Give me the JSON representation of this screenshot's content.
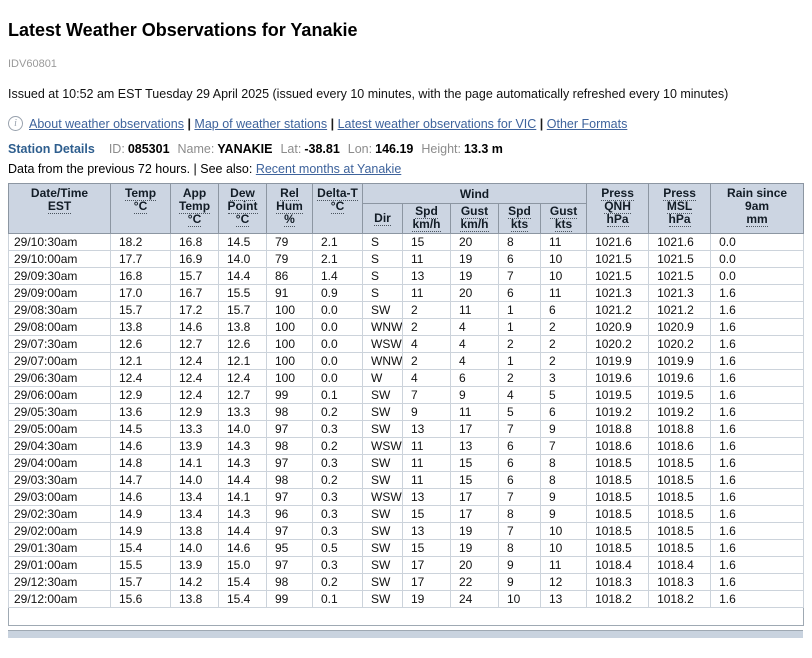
{
  "header": {
    "title": "Latest Weather Observations for Yanakie",
    "product_id": "IDV60801",
    "issued": "Issued at 10:52 am EST Tuesday 29 April 2025 (issued every 10 minutes, with the page automatically refreshed every 10 minutes)"
  },
  "nav": {
    "separator": "|",
    "links": [
      "About weather observations",
      "Map of weather stations",
      "Latest weather observations for VIC",
      "Other Formats"
    ]
  },
  "station": {
    "heading": "Station Details",
    "fields": [
      {
        "label": "ID:",
        "value": "085301"
      },
      {
        "label": "Name:",
        "value": "YANAKIE"
      },
      {
        "label": "Lat:",
        "value": "-38.81"
      },
      {
        "label": "Lon:",
        "value": "146.19"
      },
      {
        "label": "Height:",
        "value": "13.3 m"
      }
    ],
    "data_period": "Data from the previous 72 hours. | See also: ",
    "see_also_link": "Recent months at Yanakie"
  },
  "colors": {
    "link_blue": "#3e639c",
    "station_heading_blue": "#2e5e8e",
    "table_header_bg": "#ccd5e2",
    "table_border": "#ccd3db",
    "label_gray": "#8c8c8c"
  },
  "table": {
    "group_header": "Wind",
    "columns": [
      {
        "name": "date-time",
        "lines": [
          {
            "t": "Date/Time",
            "abbr": false
          },
          {
            "t": "EST",
            "abbr": true
          }
        ]
      },
      {
        "name": "temp",
        "lines": [
          {
            "t": "Temp",
            "abbr": true
          },
          {
            "t": "°C",
            "abbr": true
          }
        ]
      },
      {
        "name": "app-temp",
        "lines": [
          {
            "t": "App",
            "abbr": false
          },
          {
            "t": "Temp",
            "abbr": true
          },
          {
            "t": "°C",
            "abbr": true
          }
        ]
      },
      {
        "name": "dew-point",
        "lines": [
          {
            "t": "Dew",
            "abbr": true
          },
          {
            "t": "Point",
            "abbr": true
          },
          {
            "t": "°C",
            "abbr": true
          }
        ]
      },
      {
        "name": "rel-hum",
        "lines": [
          {
            "t": "Rel",
            "abbr": true
          },
          {
            "t": "Hum",
            "abbr": true
          },
          {
            "t": "%",
            "abbr": true
          }
        ]
      },
      {
        "name": "delta-t",
        "lines": [
          {
            "t": "Delta-T",
            "abbr": true
          },
          {
            "t": "°C",
            "abbr": true
          }
        ]
      },
      {
        "name": "wind-dir",
        "wind": true,
        "lines": [
          {
            "t": "Dir",
            "abbr": true
          }
        ]
      },
      {
        "name": "wind-spd-kmh",
        "wind": true,
        "lines": [
          {
            "t": "Spd",
            "abbr": true
          },
          {
            "t": "km/h",
            "abbr": true
          }
        ]
      },
      {
        "name": "wind-gust-kmh",
        "wind": true,
        "lines": [
          {
            "t": "Gust",
            "abbr": true
          },
          {
            "t": "km/h",
            "abbr": true
          }
        ]
      },
      {
        "name": "wind-spd-kts",
        "wind": true,
        "lines": [
          {
            "t": "Spd",
            "abbr": true
          },
          {
            "t": "kts",
            "abbr": true
          }
        ]
      },
      {
        "name": "wind-gust-kts",
        "wind": true,
        "lines": [
          {
            "t": "Gust",
            "abbr": true
          },
          {
            "t": "kts",
            "abbr": true
          }
        ]
      },
      {
        "name": "press-qnh",
        "lines": [
          {
            "t": "Press",
            "abbr": true
          },
          {
            "t": "QNH",
            "abbr": true
          },
          {
            "t": "hPa",
            "abbr": true
          }
        ]
      },
      {
        "name": "press-msl",
        "lines": [
          {
            "t": "Press",
            "abbr": true
          },
          {
            "t": "MSL",
            "abbr": true
          },
          {
            "t": "hPa",
            "abbr": true
          }
        ]
      },
      {
        "name": "rain-since-9am",
        "lines": [
          {
            "t": "Rain since",
            "abbr": false
          },
          {
            "t": "9am",
            "abbr": false
          },
          {
            "t": "mm",
            "abbr": true
          }
        ]
      }
    ],
    "rows": [
      [
        "29/10:30am",
        "18.2",
        "16.8",
        "14.5",
        "79",
        "2.1",
        "S",
        "15",
        "20",
        "8",
        "11",
        "1021.6",
        "1021.6",
        "0.0"
      ],
      [
        "29/10:00am",
        "17.7",
        "16.9",
        "14.0",
        "79",
        "2.1",
        "S",
        "11",
        "19",
        "6",
        "10",
        "1021.5",
        "1021.5",
        "0.0"
      ],
      [
        "29/09:30am",
        "16.8",
        "15.7",
        "14.4",
        "86",
        "1.4",
        "S",
        "13",
        "19",
        "7",
        "10",
        "1021.5",
        "1021.5",
        "0.0"
      ],
      [
        "29/09:00am",
        "17.0",
        "16.7",
        "15.5",
        "91",
        "0.9",
        "S",
        "11",
        "20",
        "6",
        "11",
        "1021.3",
        "1021.3",
        "1.6"
      ],
      [
        "29/08:30am",
        "15.7",
        "17.2",
        "15.7",
        "100",
        "0.0",
        "SW",
        "2",
        "11",
        "1",
        "6",
        "1021.2",
        "1021.2",
        "1.6"
      ],
      [
        "29/08:00am",
        "13.8",
        "14.6",
        "13.8",
        "100",
        "0.0",
        "WNW",
        "2",
        "4",
        "1",
        "2",
        "1020.9",
        "1020.9",
        "1.6"
      ],
      [
        "29/07:30am",
        "12.6",
        "12.7",
        "12.6",
        "100",
        "0.0",
        "WSW",
        "4",
        "4",
        "2",
        "2",
        "1020.2",
        "1020.2",
        "1.6"
      ],
      [
        "29/07:00am",
        "12.1",
        "12.4",
        "12.1",
        "100",
        "0.0",
        "WNW",
        "2",
        "4",
        "1",
        "2",
        "1019.9",
        "1019.9",
        "1.6"
      ],
      [
        "29/06:30am",
        "12.4",
        "12.4",
        "12.4",
        "100",
        "0.0",
        "W",
        "4",
        "6",
        "2",
        "3",
        "1019.6",
        "1019.6",
        "1.6"
      ],
      [
        "29/06:00am",
        "12.9",
        "12.4",
        "12.7",
        "99",
        "0.1",
        "SW",
        "7",
        "9",
        "4",
        "5",
        "1019.5",
        "1019.5",
        "1.6"
      ],
      [
        "29/05:30am",
        "13.6",
        "12.9",
        "13.3",
        "98",
        "0.2",
        "SW",
        "9",
        "11",
        "5",
        "6",
        "1019.2",
        "1019.2",
        "1.6"
      ],
      [
        "29/05:00am",
        "14.5",
        "13.3",
        "14.0",
        "97",
        "0.3",
        "SW",
        "13",
        "17",
        "7",
        "9",
        "1018.8",
        "1018.8",
        "1.6"
      ],
      [
        "29/04:30am",
        "14.6",
        "13.9",
        "14.3",
        "98",
        "0.2",
        "WSW",
        "11",
        "13",
        "6",
        "7",
        "1018.6",
        "1018.6",
        "1.6"
      ],
      [
        "29/04:00am",
        "14.8",
        "14.1",
        "14.3",
        "97",
        "0.3",
        "SW",
        "11",
        "15",
        "6",
        "8",
        "1018.5",
        "1018.5",
        "1.6"
      ],
      [
        "29/03:30am",
        "14.7",
        "14.0",
        "14.4",
        "98",
        "0.2",
        "SW",
        "11",
        "15",
        "6",
        "8",
        "1018.5",
        "1018.5",
        "1.6"
      ],
      [
        "29/03:00am",
        "14.6",
        "13.4",
        "14.1",
        "97",
        "0.3",
        "WSW",
        "13",
        "17",
        "7",
        "9",
        "1018.5",
        "1018.5",
        "1.6"
      ],
      [
        "29/02:30am",
        "14.9",
        "13.4",
        "14.3",
        "96",
        "0.3",
        "SW",
        "15",
        "17",
        "8",
        "9",
        "1018.5",
        "1018.5",
        "1.6"
      ],
      [
        "29/02:00am",
        "14.9",
        "13.8",
        "14.4",
        "97",
        "0.3",
        "SW",
        "13",
        "19",
        "7",
        "10",
        "1018.5",
        "1018.5",
        "1.6"
      ],
      [
        "29/01:30am",
        "15.4",
        "14.0",
        "14.6",
        "95",
        "0.5",
        "SW",
        "15",
        "19",
        "8",
        "10",
        "1018.5",
        "1018.5",
        "1.6"
      ],
      [
        "29/01:00am",
        "15.5",
        "13.9",
        "15.0",
        "97",
        "0.3",
        "SW",
        "17",
        "20",
        "9",
        "11",
        "1018.4",
        "1018.4",
        "1.6"
      ],
      [
        "29/12:30am",
        "15.7",
        "14.2",
        "15.4",
        "98",
        "0.2",
        "SW",
        "17",
        "22",
        "9",
        "12",
        "1018.3",
        "1018.3",
        "1.6"
      ],
      [
        "29/12:00am",
        "15.6",
        "13.8",
        "15.4",
        "99",
        "0.1",
        "SW",
        "19",
        "24",
        "10",
        "13",
        "1018.2",
        "1018.2",
        "1.6"
      ]
    ]
  }
}
